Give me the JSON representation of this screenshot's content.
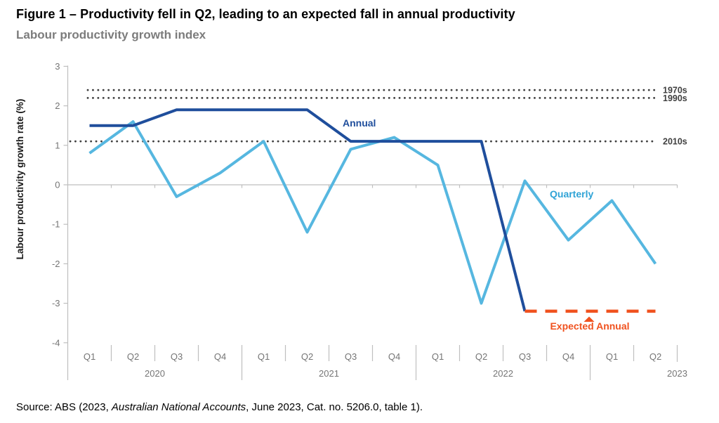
{
  "chart_data": {
    "type": "line",
    "title": "Figure 1 – Productivity fell in Q2, leading to an expected fall in annual productivity",
    "subtitle": "Labour productivity growth index",
    "ylabel": "Labour productivity growth rate (%)",
    "ylim": [
      -4,
      3
    ],
    "y_ticks": [
      3,
      2,
      1,
      0,
      -1,
      -2,
      -3,
      -4
    ],
    "x_quarters": [
      "Q1",
      "Q2",
      "Q3",
      "Q4",
      "Q1",
      "Q2",
      "Q3",
      "Q4",
      "Q1",
      "Q2",
      "Q3",
      "Q4",
      "Q1",
      "Q2"
    ],
    "x_years": [
      {
        "label": "2020",
        "quarters": 4
      },
      {
        "label": "2021",
        "quarters": 4
      },
      {
        "label": "2022",
        "quarters": 4
      },
      {
        "label": "2023",
        "quarters": 2
      }
    ],
    "series": [
      {
        "name": "Annual",
        "color": "#1F4E9C",
        "style": "solid",
        "start_index": 0,
        "values": [
          1.5,
          1.5,
          1.9,
          1.9,
          1.9,
          1.9,
          1.1,
          1.1,
          1.1,
          1.1,
          -3.2
        ]
      },
      {
        "name": "Quarterly",
        "color": "#56B7E0",
        "style": "solid",
        "start_index": 0,
        "values": [
          0.8,
          1.6,
          -0.3,
          0.3,
          1.1,
          -1.2,
          0.9,
          1.2,
          0.5,
          -3.0,
          0.1,
          -1.4,
          -0.4,
          -2.0
        ]
      },
      {
        "name": "Expected Annual",
        "color": "#F0521F",
        "style": "dashed",
        "start_index": 10,
        "values": [
          -3.2,
          -3.2,
          -3.2,
          -3.2
        ]
      }
    ],
    "reference_lines": [
      {
        "label": "1970s",
        "value": 2.4
      },
      {
        "label": "1990s",
        "value": 2.2
      },
      {
        "label": "2010s",
        "value": 1.1
      }
    ],
    "grid": false,
    "legend_position": "inline-annotations"
  },
  "source": {
    "parts": [
      "Source: ABS (2023, ",
      "Australian National Accounts",
      ", June 2023, Cat. no. 5206.0, table 1)."
    ]
  }
}
